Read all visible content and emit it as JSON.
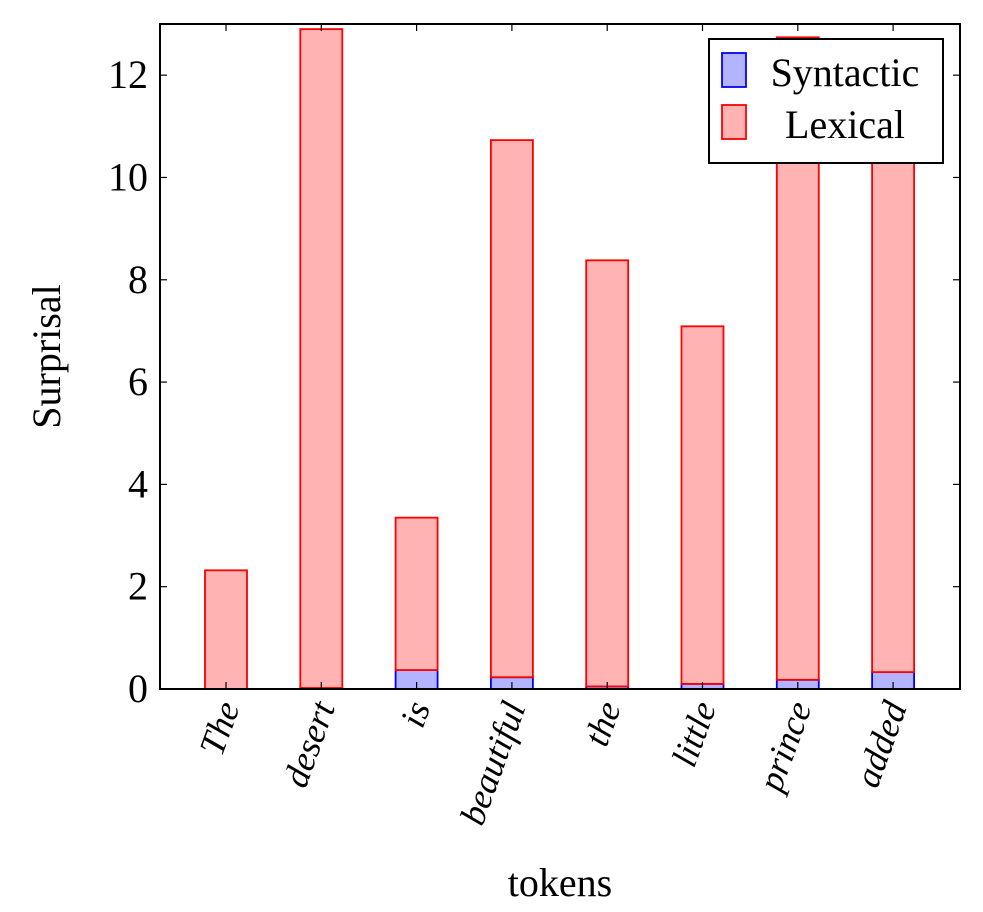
{
  "chart_data": {
    "type": "bar",
    "stacked": true,
    "categories": [
      "The",
      "desert",
      "is",
      "beautiful",
      "the",
      "little",
      "prince",
      "added"
    ],
    "series": [
      {
        "name": "Syntactic",
        "color": "#b3b3ff",
        "stroke": "#0000ff",
        "values": [
          0.0,
          0.02,
          0.37,
          0.23,
          0.05,
          0.1,
          0.18,
          0.33
        ]
      },
      {
        "name": "Lexical",
        "color": "#ffb3b3",
        "stroke": "#ff0000",
        "values": [
          2.32,
          12.88,
          2.98,
          10.5,
          8.33,
          6.99,
          12.56,
          10.42
        ]
      }
    ],
    "xlabel": "tokens",
    "ylabel": "Surprisal",
    "ylim": [
      0,
      13
    ],
    "yticks": [
      0,
      2,
      4,
      6,
      8,
      10,
      12
    ],
    "legend_position": "top-right",
    "grid": false
  }
}
